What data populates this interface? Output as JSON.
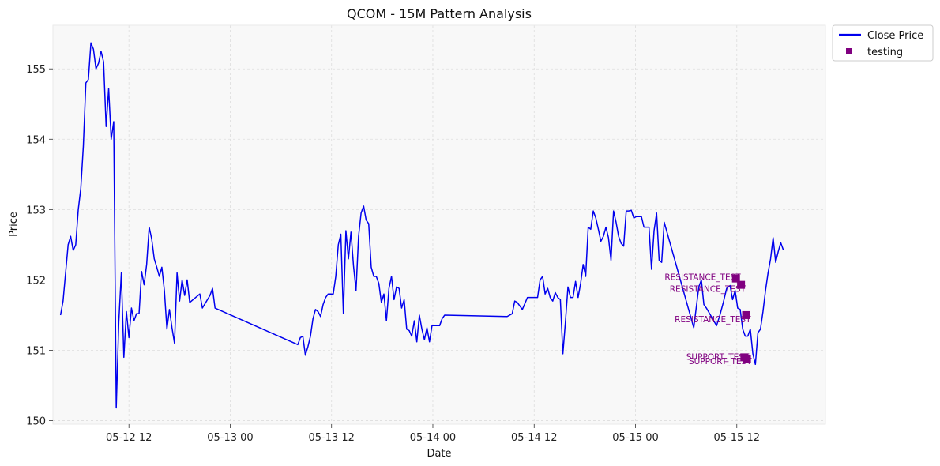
{
  "chart_data": {
    "type": "line",
    "title": "QCOM - 15M Pattern Analysis",
    "xlabel": "Date",
    "ylabel": "Price",
    "x_unit": "hours since 05-12 00:00",
    "xlim": [
      3.0,
      94.5
    ],
    "ylim": [
      149.95,
      155.62
    ],
    "grid": true,
    "legend_position": "outside-top-right",
    "x_ticks": [
      {
        "value": 12,
        "label": "05-12 12"
      },
      {
        "value": 24,
        "label": "05-13 00"
      },
      {
        "value": 36,
        "label": "05-13 12"
      },
      {
        "value": 48,
        "label": "05-14 00"
      },
      {
        "value": 60,
        "label": "05-14 12"
      },
      {
        "value": 72,
        "label": "05-15 00"
      },
      {
        "value": 84,
        "label": "05-15 12"
      }
    ],
    "y_ticks": [
      150,
      151,
      152,
      153,
      154,
      155
    ],
    "colors": {
      "line": "#0000ee",
      "marker": "#800080",
      "annot": "#800080",
      "plot_bg": "#f8f8f8"
    },
    "series": [
      {
        "name": "Close Price",
        "kind": "line",
        "points": [
          [
            3.9,
            151.5
          ],
          [
            4.2,
            151.7
          ],
          [
            4.5,
            152.1
          ],
          [
            4.8,
            152.5
          ],
          [
            5.1,
            152.62
          ],
          [
            5.4,
            152.42
          ],
          [
            5.7,
            152.5
          ],
          [
            6.0,
            153.0
          ],
          [
            6.3,
            153.3
          ],
          [
            6.6,
            153.9
          ],
          [
            6.9,
            154.8
          ],
          [
            7.2,
            154.85
          ],
          [
            7.5,
            155.37
          ],
          [
            7.8,
            155.28
          ],
          [
            8.1,
            155.0
          ],
          [
            8.4,
            155.08
          ],
          [
            8.7,
            155.25
          ],
          [
            9.0,
            155.1
          ],
          [
            9.3,
            154.18
          ],
          [
            9.6,
            154.72
          ],
          [
            9.9,
            154.0
          ],
          [
            10.2,
            154.25
          ],
          [
            10.5,
            150.18
          ],
          [
            10.8,
            151.4
          ],
          [
            11.1,
            152.1
          ],
          [
            11.4,
            150.9
          ],
          [
            11.7,
            151.55
          ],
          [
            12.0,
            151.18
          ],
          [
            12.3,
            151.6
          ],
          [
            12.6,
            151.42
          ],
          [
            12.9,
            151.52
          ],
          [
            13.2,
            151.52
          ],
          [
            13.5,
            152.12
          ],
          [
            13.8,
            151.93
          ],
          [
            14.1,
            152.22
          ],
          [
            14.4,
            152.75
          ],
          [
            14.7,
            152.58
          ],
          [
            15.0,
            152.3
          ],
          [
            15.3,
            152.18
          ],
          [
            15.6,
            152.05
          ],
          [
            15.9,
            152.18
          ],
          [
            16.2,
            151.85
          ],
          [
            16.5,
            151.3
          ],
          [
            16.8,
            151.58
          ],
          [
            17.1,
            151.32
          ],
          [
            17.4,
            151.1
          ],
          [
            17.7,
            152.1
          ],
          [
            18.0,
            151.7
          ],
          [
            18.3,
            152.0
          ],
          [
            18.6,
            151.78
          ],
          [
            18.9,
            152.0
          ],
          [
            19.2,
            151.68
          ],
          [
            20.4,
            151.8
          ],
          [
            20.7,
            151.6
          ],
          [
            21.6,
            151.78
          ],
          [
            21.9,
            151.88
          ],
          [
            22.2,
            151.6
          ],
          [
            32.0,
            151.08
          ],
          [
            32.3,
            151.18
          ],
          [
            32.6,
            151.2
          ],
          [
            32.9,
            150.93
          ],
          [
            33.2,
            151.05
          ],
          [
            33.5,
            151.2
          ],
          [
            33.8,
            151.45
          ],
          [
            34.1,
            151.58
          ],
          [
            34.4,
            151.55
          ],
          [
            34.7,
            151.48
          ],
          [
            35.0,
            151.65
          ],
          [
            35.3,
            151.75
          ],
          [
            35.6,
            151.8
          ],
          [
            35.9,
            151.8
          ],
          [
            36.2,
            151.8
          ],
          [
            36.5,
            152.05
          ],
          [
            36.8,
            152.5
          ],
          [
            37.1,
            152.65
          ],
          [
            37.4,
            151.52
          ],
          [
            37.7,
            152.7
          ],
          [
            38.0,
            152.3
          ],
          [
            38.3,
            152.68
          ],
          [
            38.6,
            152.2
          ],
          [
            38.9,
            151.85
          ],
          [
            39.2,
            152.62
          ],
          [
            39.5,
            152.95
          ],
          [
            39.8,
            153.05
          ],
          [
            40.1,
            152.85
          ],
          [
            40.4,
            152.8
          ],
          [
            40.7,
            152.18
          ],
          [
            41.0,
            152.05
          ],
          [
            41.3,
            152.05
          ],
          [
            41.6,
            151.95
          ],
          [
            41.9,
            151.68
          ],
          [
            42.2,
            151.8
          ],
          [
            42.5,
            151.42
          ],
          [
            42.8,
            151.88
          ],
          [
            43.1,
            152.05
          ],
          [
            43.4,
            151.72
          ],
          [
            43.7,
            151.9
          ],
          [
            44.0,
            151.88
          ],
          [
            44.3,
            151.6
          ],
          [
            44.6,
            151.72
          ],
          [
            44.9,
            151.3
          ],
          [
            45.2,
            151.28
          ],
          [
            45.5,
            151.2
          ],
          [
            45.8,
            151.42
          ],
          [
            46.1,
            151.12
          ],
          [
            46.4,
            151.5
          ],
          [
            46.7,
            151.3
          ],
          [
            47.0,
            151.15
          ],
          [
            47.3,
            151.32
          ],
          [
            47.6,
            151.12
          ],
          [
            47.9,
            151.35
          ],
          [
            48.2,
            151.35
          ],
          [
            48.8,
            151.35
          ],
          [
            49.1,
            151.45
          ],
          [
            49.4,
            151.5
          ],
          [
            56.8,
            151.48
          ],
          [
            57.4,
            151.52
          ],
          [
            57.7,
            151.7
          ],
          [
            58.0,
            151.68
          ],
          [
            58.6,
            151.58
          ],
          [
            59.2,
            151.75
          ],
          [
            59.8,
            151.75
          ],
          [
            60.4,
            151.75
          ],
          [
            60.7,
            152.0
          ],
          [
            61.0,
            152.05
          ],
          [
            61.3,
            151.8
          ],
          [
            61.6,
            151.88
          ],
          [
            61.9,
            151.75
          ],
          [
            62.2,
            151.7
          ],
          [
            62.5,
            151.82
          ],
          [
            62.8,
            151.75
          ],
          [
            63.1,
            151.72
          ],
          [
            63.4,
            150.95
          ],
          [
            63.7,
            151.4
          ],
          [
            64.0,
            151.9
          ],
          [
            64.3,
            151.75
          ],
          [
            64.6,
            151.75
          ],
          [
            64.9,
            151.98
          ],
          [
            65.2,
            151.75
          ],
          [
            65.5,
            151.95
          ],
          [
            65.8,
            152.22
          ],
          [
            66.1,
            152.05
          ],
          [
            66.4,
            152.75
          ],
          [
            66.7,
            152.72
          ],
          [
            67.0,
            152.98
          ],
          [
            67.3,
            152.88
          ],
          [
            67.6,
            152.72
          ],
          [
            67.9,
            152.55
          ],
          [
            68.2,
            152.62
          ],
          [
            68.5,
            152.75
          ],
          [
            68.8,
            152.6
          ],
          [
            69.1,
            152.28
          ],
          [
            69.4,
            152.98
          ],
          [
            69.7,
            152.82
          ],
          [
            70.0,
            152.62
          ],
          [
            70.3,
            152.52
          ],
          [
            70.6,
            152.48
          ],
          [
            70.9,
            152.98
          ],
          [
            71.2,
            152.98
          ],
          [
            71.5,
            152.99
          ],
          [
            71.8,
            152.88
          ],
          [
            72.1,
            152.9
          ],
          [
            72.4,
            152.9
          ],
          [
            72.7,
            152.9
          ],
          [
            73.0,
            152.75
          ],
          [
            73.3,
            152.75
          ],
          [
            73.6,
            152.75
          ],
          [
            73.9,
            152.15
          ],
          [
            74.2,
            152.7
          ],
          [
            74.5,
            152.95
          ],
          [
            74.8,
            152.28
          ],
          [
            75.1,
            152.25
          ],
          [
            75.4,
            152.82
          ],
          [
            78.9,
            151.32
          ],
          [
            79.5,
            151.9
          ],
          [
            79.8,
            152.0
          ],
          [
            80.1,
            151.65
          ],
          [
            80.4,
            151.6
          ],
          [
            81.6,
            151.35
          ],
          [
            82.0,
            151.5
          ],
          [
            82.4,
            151.68
          ],
          [
            82.8,
            151.88
          ],
          [
            83.2,
            151.92
          ],
          [
            83.5,
            151.72
          ],
          [
            83.8,
            151.85
          ],
          [
            84.1,
            151.6
          ],
          [
            84.4,
            151.58
          ],
          [
            84.7,
            151.3
          ],
          [
            85.0,
            151.2
          ],
          [
            85.3,
            151.2
          ],
          [
            85.6,
            151.3
          ],
          [
            85.9,
            150.95
          ],
          [
            86.2,
            150.8
          ],
          [
            86.5,
            151.25
          ],
          [
            86.8,
            151.3
          ],
          [
            87.1,
            151.55
          ],
          [
            87.4,
            151.85
          ],
          [
            87.7,
            152.1
          ],
          [
            88.0,
            152.3
          ],
          [
            88.3,
            152.6
          ],
          [
            88.6,
            152.25
          ],
          [
            88.9,
            152.4
          ],
          [
            89.2,
            152.53
          ],
          [
            89.5,
            152.43
          ]
        ]
      },
      {
        "name": "testing",
        "kind": "marker",
        "points": [
          [
            83.9,
            152.02
          ],
          [
            84.5,
            151.93
          ],
          [
            85.1,
            151.5
          ],
          [
            84.9,
            150.9
          ],
          [
            85.2,
            150.88
          ]
        ]
      }
    ],
    "annotations": [
      {
        "x": 83.9,
        "y": 152.02,
        "text": "RESISTANCE_TEST",
        "align": "end",
        "dy": -2
      },
      {
        "x": 84.5,
        "y": 151.93,
        "text": "RESISTANCE_TEST",
        "align": "end",
        "dy": 5
      },
      {
        "x": 85.1,
        "y": 151.5,
        "text": "RESISTANCE_TEST",
        "align": "end",
        "dy": 5
      },
      {
        "x": 84.9,
        "y": 150.9,
        "text": "SUPPORT_TEST",
        "align": "end",
        "dy": -1
      },
      {
        "x": 85.2,
        "y": 150.88,
        "text": "SUPPORT_TEST",
        "align": "end",
        "dy": 3
      }
    ]
  }
}
